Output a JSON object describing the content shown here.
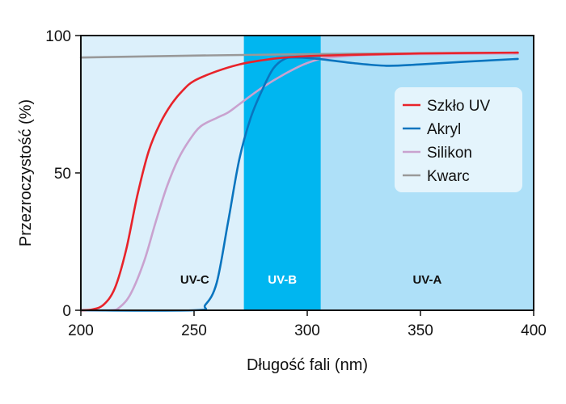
{
  "chart_data": {
    "type": "line",
    "title": "",
    "xlabel": "Długość fali (nm)",
    "ylabel": "Przezroczystość (%)",
    "xlim": [
      200,
      400
    ],
    "ylim": [
      0,
      100
    ],
    "x_ticks": [
      "200",
      "250",
      "300",
      "350",
      "400"
    ],
    "y_ticks": [
      "0",
      "50",
      "100"
    ],
    "grid": false,
    "legend_position": "right",
    "bands": [
      {
        "label": "UV-C",
        "x_start": 200,
        "x_end": 272,
        "color": "#dcf0fb",
        "label_color": "#111111"
      },
      {
        "label": "UV-B",
        "x_start": 272,
        "x_end": 306,
        "color": "#00b6f0",
        "label_color": "#ffffff"
      },
      {
        "label": "UV-A",
        "x_start": 306,
        "x_end": 400,
        "color": "#aee0f8",
        "label_color": "#111111"
      }
    ],
    "series": [
      {
        "name": "Szkło UV",
        "color": "#e8232a",
        "points": [
          [
            200,
            0
          ],
          [
            205,
            0.3
          ],
          [
            210,
            2
          ],
          [
            215,
            8
          ],
          [
            220,
            22
          ],
          [
            225,
            42
          ],
          [
            230,
            58
          ],
          [
            235,
            68
          ],
          [
            240,
            75
          ],
          [
            245,
            80
          ],
          [
            250,
            83.5
          ],
          [
            260,
            87
          ],
          [
            270,
            89.5
          ],
          [
            280,
            91
          ],
          [
            290,
            92
          ],
          [
            300,
            92.5
          ],
          [
            320,
            93
          ],
          [
            350,
            93.5
          ],
          [
            393,
            93.8
          ]
        ]
      },
      {
        "name": "Akryl",
        "color": "#0a75bf",
        "points": [
          [
            200,
            0
          ],
          [
            250,
            0
          ],
          [
            255,
            2
          ],
          [
            260,
            10
          ],
          [
            265,
            32
          ],
          [
            270,
            55
          ],
          [
            275,
            70
          ],
          [
            280,
            80
          ],
          [
            285,
            88
          ],
          [
            290,
            91.5
          ],
          [
            295,
            92
          ],
          [
            305,
            91.5
          ],
          [
            320,
            90
          ],
          [
            335,
            89
          ],
          [
            350,
            89.5
          ],
          [
            370,
            90.5
          ],
          [
            393,
            91.5
          ]
        ]
      },
      {
        "name": "Silikon",
        "color": "#c9a2cf",
        "points": [
          [
            200,
            0
          ],
          [
            213,
            0
          ],
          [
            217,
            1
          ],
          [
            222,
            6
          ],
          [
            228,
            18
          ],
          [
            233,
            32
          ],
          [
            238,
            45
          ],
          [
            243,
            55
          ],
          [
            248,
            62
          ],
          [
            253,
            67
          ],
          [
            260,
            70
          ],
          [
            265,
            72
          ],
          [
            270,
            75
          ],
          [
            280,
            81
          ],
          [
            290,
            86
          ],
          [
            300,
            90
          ],
          [
            310,
            92
          ],
          [
            330,
            93
          ],
          [
            360,
            93.3
          ],
          [
            393,
            93.5
          ]
        ]
      },
      {
        "name": "Kwarc",
        "color": "#999999",
        "points": [
          [
            200,
            92
          ],
          [
            250,
            92.7
          ],
          [
            300,
            93.2
          ],
          [
            350,
            93.5
          ],
          [
            393,
            93.5
          ]
        ]
      }
    ]
  }
}
